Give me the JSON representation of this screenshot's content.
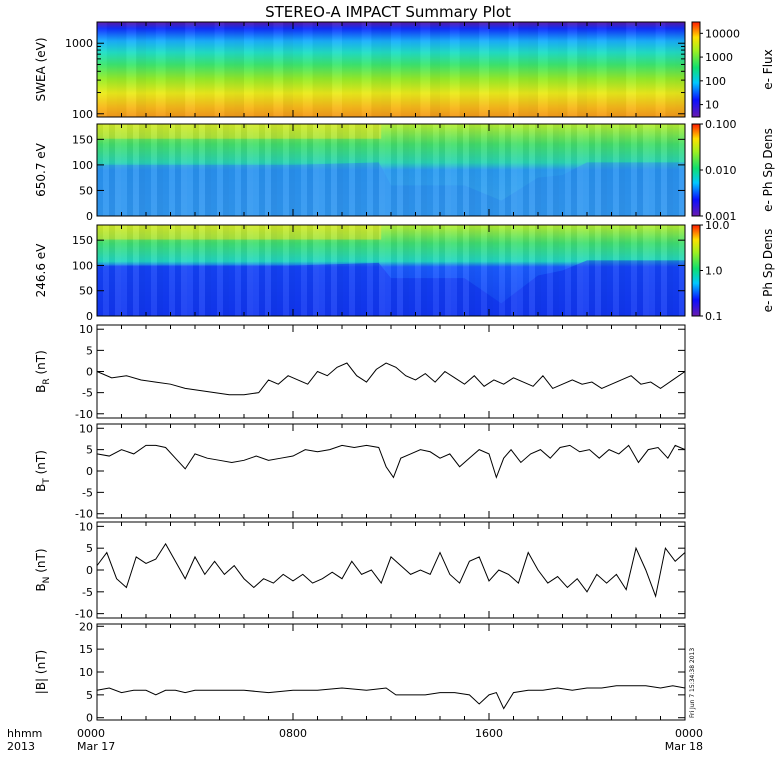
{
  "title": "STEREO-A IMPACT Summary Plot",
  "time_axis": {
    "corner_top": "hhmm",
    "corner_bottom": "2013",
    "ticks": [
      {
        "hhmm": "0000",
        "date": "Mar 17"
      },
      {
        "hhmm": "0800",
        "date": ""
      },
      {
        "hhmm": "1600",
        "date": ""
      },
      {
        "hhmm": "0000",
        "date": "Mar 18"
      }
    ]
  },
  "stamp": "Fri Jun  7 15:34:38 2013",
  "colors": {
    "trace": "#000000",
    "axis": "#000000",
    "background": "#ffffff"
  },
  "colormap": "rainbow (purple-blue-cyan-green-yellow-orange-red)",
  "chart_data": [
    {
      "type": "heatmap",
      "ylabel": "SWEA (eV)",
      "yscale": "log",
      "ylim": [
        90,
        2000
      ],
      "yticks": [
        "100",
        "1000"
      ],
      "colorbar": {
        "label": "e- Flux",
        "scale": "log",
        "range": [
          3,
          30000
        ],
        "ticks": [
          "10",
          "100",
          "1000",
          "10000"
        ]
      },
      "description_rows": [
        {
          "energy_eV": 1700,
          "flux": 5
        },
        {
          "energy_eV": 1000,
          "flux": 100
        },
        {
          "energy_eV": 500,
          "flux": 600
        },
        {
          "energy_eV": 200,
          "flux": 3000
        },
        {
          "energy_eV": 110,
          "flux": 10000
        }
      ]
    },
    {
      "type": "heatmap",
      "ylabel": "650.7 eV",
      "ylim": [
        0,
        180
      ],
      "yticks": [
        "0",
        "50",
        "100",
        "150"
      ],
      "colorbar": {
        "label": "e- Ph Sp Dens",
        "scale": "log",
        "range": [
          0.001,
          0.1
        ],
        "ticks": [
          "0.001",
          "0.010",
          "0.100"
        ]
      },
      "boundary_deg_vs_hour": [
        [
          0,
          100
        ],
        [
          4,
          100
        ],
        [
          8,
          100
        ],
        [
          11.5,
          105
        ],
        [
          12,
          60
        ],
        [
          15,
          60
        ],
        [
          16.5,
          30
        ],
        [
          18,
          75
        ],
        [
          19,
          80
        ],
        [
          20,
          105
        ],
        [
          24,
          105
        ]
      ]
    },
    {
      "type": "heatmap",
      "ylabel": "246.6 eV",
      "ylim": [
        0,
        180
      ],
      "yticks": [
        "0",
        "50",
        "100",
        "150"
      ],
      "colorbar": {
        "label": "e- Ph Sp Dens",
        "scale": "log",
        "range": [
          0.1,
          10
        ],
        "ticks": [
          "0.1",
          "1.0",
          "10.0"
        ]
      },
      "boundary_deg_vs_hour": [
        [
          0,
          100
        ],
        [
          4,
          100
        ],
        [
          8,
          100
        ],
        [
          11.5,
          105
        ],
        [
          12,
          75
        ],
        [
          15,
          75
        ],
        [
          16.5,
          25
        ],
        [
          18,
          80
        ],
        [
          19,
          90
        ],
        [
          20,
          110
        ],
        [
          24,
          110
        ]
      ]
    },
    {
      "type": "line",
      "ylabel_main": "B",
      "ylabel_sub": "R",
      "ylabel_unit": " (nT)",
      "ylim": [
        -11,
        11
      ],
      "yticks": [
        -10,
        -5,
        0,
        5,
        10
      ],
      "x_hours": [
        0,
        0.6,
        1.2,
        1.8,
        2.4,
        3,
        3.6,
        4.2,
        4.8,
        5.4,
        6,
        6.6,
        7,
        7.4,
        7.8,
        8.2,
        8.6,
        9,
        9.4,
        9.8,
        10.2,
        10.6,
        11,
        11.4,
        11.8,
        12.2,
        12.6,
        13,
        13.4,
        13.8,
        14.2,
        14.6,
        15,
        15.4,
        15.8,
        16.2,
        16.6,
        17,
        17.4,
        17.8,
        18.2,
        18.6,
        19,
        19.4,
        19.8,
        20.2,
        20.6,
        21,
        21.4,
        21.8,
        22.2,
        22.6,
        23,
        23.5,
        24
      ],
      "values": [
        0,
        -1.5,
        -1,
        -2,
        -2.5,
        -3,
        -4,
        -4.5,
        -5,
        -5.5,
        -5.5,
        -5,
        -2,
        -3,
        -1,
        -2,
        -3,
        0,
        -1,
        1,
        2,
        -1,
        -2.5,
        0.5,
        2,
        1,
        -1,
        -2,
        -0.5,
        -2.5,
        0,
        -1.5,
        -3,
        -1,
        -3.5,
        -2,
        -3,
        -1.5,
        -2.5,
        -3.5,
        -1,
        -4,
        -3,
        -2,
        -3,
        -2.5,
        -4,
        -3,
        -2,
        -1,
        -3,
        -2.5,
        -4,
        -2,
        0
      ]
    },
    {
      "type": "line",
      "ylabel_main": "B",
      "ylabel_sub": "T",
      "ylabel_unit": " (nT)",
      "ylim": [
        -11,
        11
      ],
      "yticks": [
        -10,
        -5,
        0,
        5,
        10
      ],
      "x_hours": [
        0,
        0.5,
        1,
        1.5,
        2,
        2.4,
        2.8,
        3.2,
        3.6,
        4,
        4.5,
        5,
        5.5,
        6,
        6.5,
        7,
        7.5,
        8,
        8.5,
        9,
        9.5,
        10,
        10.5,
        11,
        11.5,
        11.8,
        12.1,
        12.4,
        12.8,
        13.2,
        13.6,
        14,
        14.4,
        14.8,
        15.2,
        15.6,
        16,
        16.3,
        16.6,
        16.9,
        17.3,
        17.7,
        18.1,
        18.5,
        18.9,
        19.3,
        19.7,
        20.1,
        20.5,
        20.9,
        21.3,
        21.7,
        22.1,
        22.5,
        22.9,
        23.3,
        23.6,
        24
      ],
      "values": [
        4,
        3.5,
        5,
        4,
        6,
        6,
        5.5,
        3,
        0.5,
        4,
        3,
        2.5,
        2,
        2.5,
        3.5,
        2.5,
        3,
        3.5,
        5,
        4.5,
        5,
        6,
        5.5,
        6,
        5.5,
        1,
        -1.5,
        3,
        4,
        5,
        4.5,
        3,
        4,
        1,
        3,
        5,
        4,
        -1.5,
        3,
        5,
        2,
        4,
        5,
        3,
        5.5,
        6,
        4.5,
        5,
        3,
        5,
        4,
        6,
        2,
        5,
        5.5,
        3,
        6,
        5
      ]
    },
    {
      "type": "line",
      "ylabel_main": "B",
      "ylabel_sub": "N",
      "ylabel_unit": " (nT)",
      "ylim": [
        -11,
        11
      ],
      "yticks": [
        -10,
        -5,
        0,
        5,
        10
      ],
      "x_hours": [
        0,
        0.4,
        0.8,
        1.2,
        1.6,
        2,
        2.4,
        2.8,
        3.2,
        3.6,
        4,
        4.4,
        4.8,
        5.2,
        5.6,
        6,
        6.4,
        6.8,
        7.2,
        7.6,
        8,
        8.4,
        8.8,
        9.2,
        9.6,
        10,
        10.4,
        10.8,
        11.2,
        11.6,
        12,
        12.4,
        12.8,
        13.2,
        13.6,
        14,
        14.4,
        14.8,
        15.2,
        15.6,
        16,
        16.4,
        16.8,
        17.2,
        17.6,
        18,
        18.4,
        18.8,
        19.2,
        19.6,
        20,
        20.4,
        20.8,
        21.2,
        21.6,
        22,
        22.4,
        22.8,
        23.2,
        23.6,
        24
      ],
      "values": [
        1,
        4,
        -2,
        -4,
        3,
        1.5,
        2.5,
        6,
        2,
        -2,
        3,
        -1,
        2,
        -1,
        1,
        -2,
        -4,
        -2,
        -3,
        -1,
        -2.5,
        -1,
        -3,
        -2,
        -0.5,
        -2,
        2,
        -1,
        0,
        -3,
        3,
        1,
        -1,
        0,
        -1,
        4,
        -1,
        -3,
        2,
        3,
        -2.5,
        0,
        -1,
        -3,
        4,
        0,
        -3,
        -1.5,
        -4,
        -2,
        -5,
        -1,
        -3,
        -1,
        -4.5,
        5,
        0,
        -6,
        5,
        2,
        4
      ]
    },
    {
      "type": "line",
      "ylabel": "|B| (nT)",
      "ylim": [
        -0.5,
        20.5
      ],
      "yticks": [
        0,
        5,
        10,
        15,
        20
      ],
      "x_hours": [
        0,
        0.5,
        1,
        1.5,
        2,
        2.4,
        2.8,
        3.2,
        3.6,
        4,
        5,
        6,
        7,
        8,
        9,
        10,
        11,
        11.8,
        12.2,
        12.8,
        13.4,
        14,
        14.6,
        15.2,
        15.6,
        16,
        16.3,
        16.6,
        17,
        17.6,
        18.2,
        18.8,
        19.4,
        20,
        20.6,
        21.2,
        21.8,
        22.4,
        23,
        23.5,
        24
      ],
      "values": [
        6,
        6.5,
        5.5,
        6,
        6,
        5,
        6,
        6,
        5.5,
        6,
        6,
        6,
        5.5,
        6,
        6,
        6.5,
        6,
        6.5,
        5,
        5,
        5,
        5.5,
        5.5,
        5,
        3,
        5,
        5.5,
        2,
        5.5,
        6,
        6,
        6.5,
        6,
        6.5,
        6.5,
        7,
        7,
        7,
        6.5,
        7,
        6.5
      ]
    }
  ]
}
